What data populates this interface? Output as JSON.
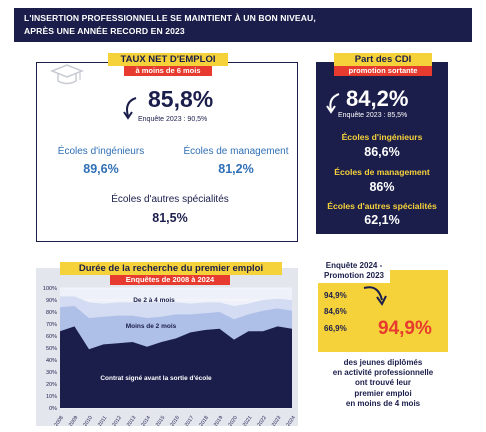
{
  "header": {
    "line1": "L'INSERTION PROFESSIONNELLE SE MAINTIENT À UN BON NIVEAU,",
    "line2": "APRÈS UNE ANNÉE RECORD EN 2023"
  },
  "emploi": {
    "title": "TAUX NET D'EMPLOI",
    "subtitle": "à moins de 6 mois",
    "main_value": "85,8%",
    "note": "Enquête 2023 : 90,5%",
    "ingenieurs_label": "Écoles d'ingénieurs",
    "ingenieurs_value": "89,6%",
    "management_label": "Écoles de management",
    "management_value": "81,2%",
    "autres_label": "Écoles d'autres spécialités",
    "autres_value": "81,5%",
    "icon": "graduation-cap-icon"
  },
  "cdi": {
    "title": "Part des CDI",
    "subtitle": "promotion sortante",
    "main_value": "84,2%",
    "note": "Enquête 2023 : 85,5%",
    "ingenieurs_label": "Écoles d'ingénieurs",
    "ingenieurs_value": "86,6%",
    "management_label": "Écoles de management",
    "management_value": "86%",
    "autres_label": "Écoles d'autres spécialités",
    "autres_value": "62,1%"
  },
  "chart": {
    "title": "Durée de la recherche du premier emploi",
    "subtitle": "Enquêtes de 2008 à 2024",
    "band_labels": [
      "De 2 à 4 mois",
      "Moins de 2 mois",
      "Contrat signé avant la sortie d'école"
    ]
  },
  "chart_data": {
    "type": "area",
    "stacked": true,
    "x": [
      "2008",
      "2009",
      "2010",
      "2011",
      "2012",
      "2013",
      "2014",
      "2015",
      "2016",
      "2017",
      "2018",
      "2019",
      "2020",
      "2021",
      "2022",
      "2023",
      "2024"
    ],
    "series": [
      {
        "name": "Contrat signé avant la sortie d'école",
        "values": [
          64,
          68,
          49,
          53,
          54,
          55,
          51,
          55,
          58,
          63,
          65,
          66,
          57,
          64,
          64,
          68,
          66
        ]
      },
      {
        "name": "Moins de 2 mois",
        "values": [
          20,
          17,
          26,
          23,
          23,
          22,
          24,
          21,
          20,
          15,
          14,
          14,
          17,
          14,
          17,
          15,
          15
        ]
      },
      {
        "name": "De 2 à 4 mois",
        "values": [
          9,
          8,
          13,
          11,
          11,
          11,
          13,
          12,
          10,
          9,
          9,
          8,
          11,
          9,
          9,
          8,
          9
        ]
      }
    ],
    "y_ticks": [
      "0%",
      "10%",
      "20%",
      "30%",
      "40%",
      "50%",
      "60%",
      "70%",
      "80%",
      "90%",
      "100%"
    ],
    "ylim": [
      0,
      100
    ],
    "colors": [
      "#1b1e4b",
      "#aebfe8",
      "#d3dcf2"
    ]
  },
  "enquete": {
    "title_line1": "Enquête 2024 -",
    "title_line2": "Promotion 2023",
    "values": [
      "94,9%",
      "84,6%",
      "66,9%"
    ],
    "big_value": "94,9%",
    "text_lines": [
      "des jeunes diplômés",
      "en activité professionnelle",
      "ont trouvé leur",
      "premier emploi",
      "en moins de 4 mois"
    ]
  }
}
